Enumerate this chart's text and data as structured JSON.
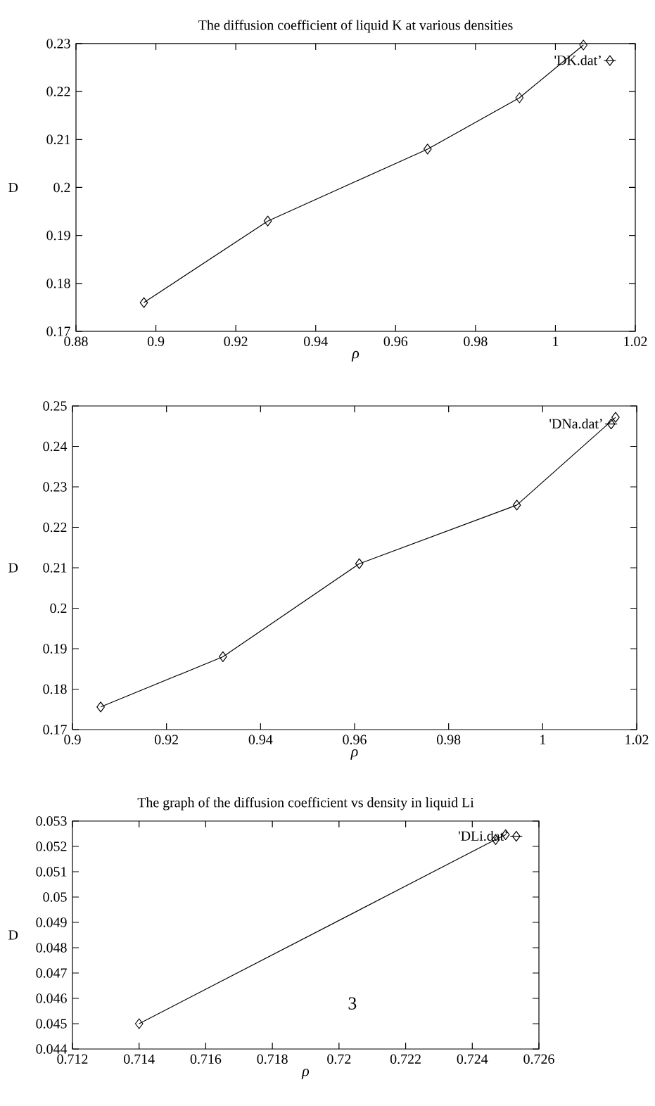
{
  "chart_data": [
    {
      "type": "line",
      "title": "The diffusion coefficient of liquid K at various densities",
      "xlabel": "ρ",
      "ylabel": "D",
      "series": [
        {
          "name": "'DK.dat’",
          "color": "#000000",
          "x": [
            0.897,
            0.928,
            0.968,
            0.991,
            1.007
          ],
          "values": [
            0.176,
            0.193,
            0.208,
            0.2187,
            0.2297
          ]
        }
      ],
      "xlim": [
        0.88,
        1.02
      ],
      "xticks": [
        0.88,
        0.9,
        0.92,
        0.94,
        0.96,
        0.98,
        1,
        1.02
      ],
      "ylim": [
        0.17,
        0.23
      ],
      "yticks": [
        0.17,
        0.18,
        0.19,
        0.2,
        0.21,
        0.22,
        0.23
      ],
      "legend": "top right",
      "marker": "diamond",
      "line_style": "solid"
    },
    {
      "type": "line",
      "xlabel": "ρ",
      "ylabel": "D",
      "series": [
        {
          "name": "'DNa.dat’",
          "color": "#000000",
          "x": [
            0.906,
            0.932,
            0.961,
            0.9945,
            1.0155
          ],
          "values": [
            0.1756,
            0.188,
            0.211,
            0.2255,
            0.2472
          ]
        }
      ],
      "xlim": [
        0.9,
        1.02
      ],
      "xticks": [
        0.9,
        0.92,
        0.94,
        0.96,
        0.98,
        1,
        1.02
      ],
      "ylim": [
        0.17,
        0.25
      ],
      "yticks": [
        0.17,
        0.18,
        0.19,
        0.2,
        0.21,
        0.22,
        0.23,
        0.24,
        0.25
      ],
      "legend": "top right",
      "marker": "diamond",
      "line_style": "solid"
    },
    {
      "type": "line",
      "title": "The graph of the diffusion coefficient vs density in liquid Li",
      "xlabel": "ρ",
      "ylabel": "D",
      "series": [
        {
          "name": "'DLi.dat’",
          "color": "#000000",
          "x": [
            0.714,
            0.7247,
            0.725
          ],
          "values": [
            0.045,
            0.05227,
            0.05246
          ]
        }
      ],
      "xlim": [
        0.712,
        0.726
      ],
      "xticks": [
        0.712,
        0.714,
        0.716,
        0.718,
        0.72,
        0.722,
        0.724,
        0.726
      ],
      "ylim": [
        0.044,
        0.053
      ],
      "yticks": [
        0.044,
        0.045,
        0.046,
        0.047,
        0.048,
        0.049,
        0.05,
        0.051,
        0.052,
        0.053
      ],
      "legend": "top right",
      "marker": "diamond",
      "line_style": "solid",
      "annotations": [
        "3"
      ]
    }
  ]
}
